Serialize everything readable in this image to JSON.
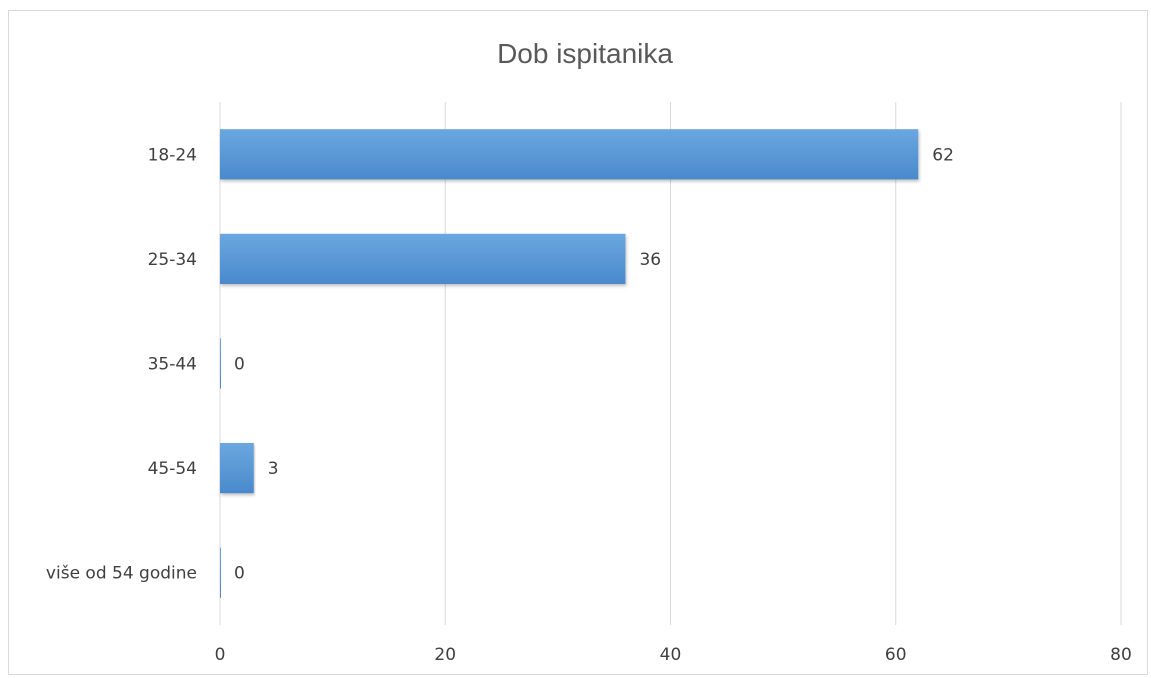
{
  "chart_data": {
    "type": "bar",
    "orientation": "horizontal",
    "title": "Dob ispitanika",
    "categories": [
      "18-24",
      "25-34",
      "35-44",
      "45-54",
      "više od 54 godine"
    ],
    "values": [
      62,
      36,
      0,
      3,
      0
    ],
    "xlim": [
      0,
      80
    ],
    "x_ticks": [
      0,
      20,
      40,
      60,
      80
    ],
    "grid": true,
    "legend": "none",
    "bar_color": "#5b9bd5",
    "data_labels": true
  }
}
